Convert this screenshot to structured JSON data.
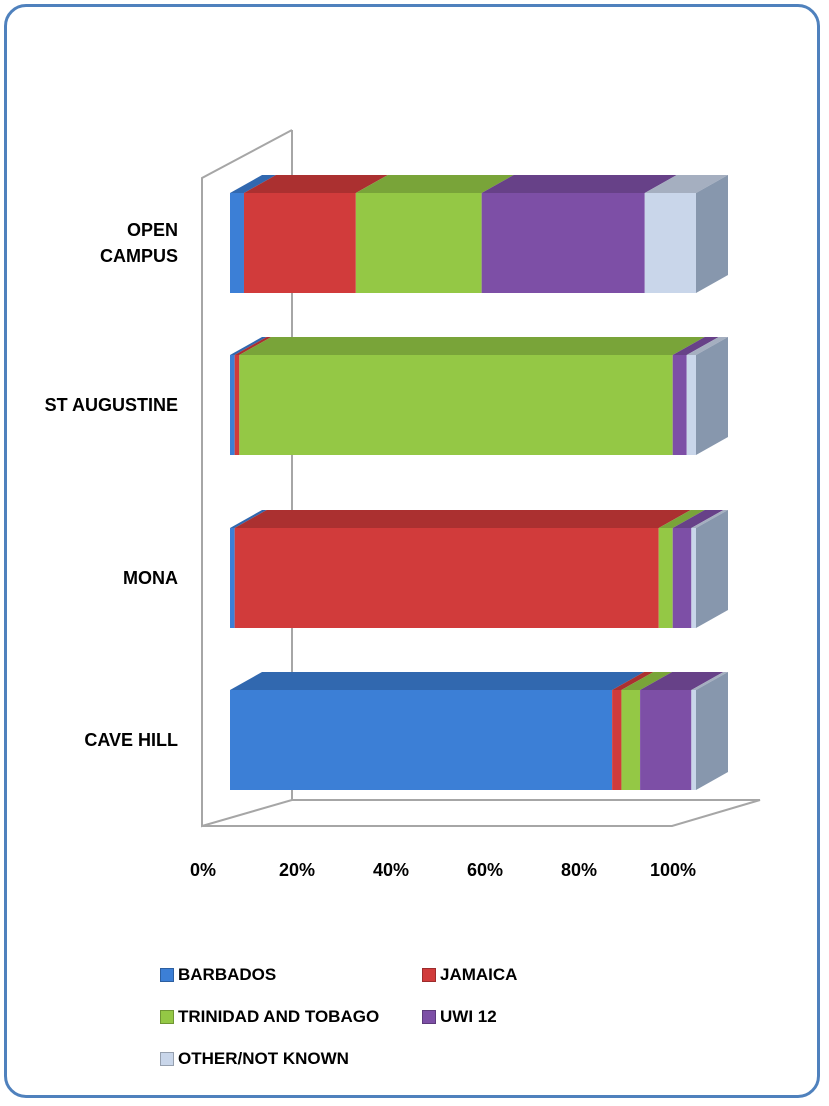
{
  "chart_data": {
    "type": "bar",
    "orientation": "horizontal",
    "stacked": "percent",
    "categories": [
      "CAVE HILL",
      "MONA",
      "ST AUGUSTINE",
      "OPEN CAMPUS"
    ],
    "category_label_lines": {
      "CAVE HILL": [
        "CAVE HILL"
      ],
      "MONA": [
        "MONA"
      ],
      "ST AUGUSTINE": [
        "ST AUGUSTINE"
      ],
      "OPEN CAMPUS": [
        "OPEN",
        "CAMPUS"
      ]
    },
    "series": [
      {
        "name": "BARBADOS",
        "color": "#3c7fd6",
        "values": [
          82,
          1,
          1,
          3
        ]
      },
      {
        "name": "JAMAICA",
        "color": "#d13b3b",
        "values": [
          2,
          91,
          1,
          24
        ]
      },
      {
        "name": "TRINIDAD AND TOBAGO",
        "color": "#94c845",
        "values": [
          4,
          3,
          93,
          27
        ]
      },
      {
        "name": "UWI 12",
        "color": "#7d4fa6",
        "values": [
          11,
          4,
          3,
          35
        ]
      },
      {
        "name": "OTHER/NOT KNOWN",
        "color": "#c9d6ea",
        "values": [
          1,
          1,
          2,
          11
        ]
      }
    ],
    "x_ticks": [
      "0%",
      "20%",
      "40%",
      "60%",
      "80%",
      "100%"
    ],
    "xlim": [
      0,
      100
    ],
    "legend_position": "bottom",
    "style": "3d"
  }
}
